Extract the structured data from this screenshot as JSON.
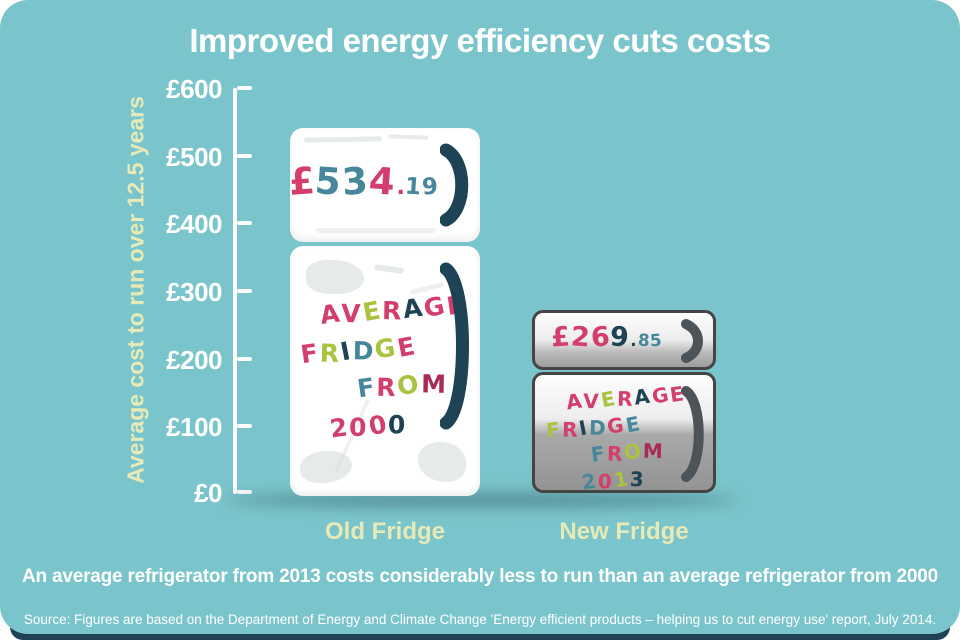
{
  "palette": {
    "pink": "#d23f6d",
    "teal": "#47869b",
    "lime": "#a9c23f",
    "navy": "#1d4355",
    "crimson": "#a82c52"
  },
  "colors": {
    "background": "#7ac5cb",
    "navy": "#1d4355",
    "pale_yellow": "#e7eab6",
    "white": "#ffffff",
    "silver_border": "#454545",
    "gray_handle": "#4d5356"
  },
  "title": "Improved energy efficiency cuts costs",
  "y_axis": {
    "label": "Average cost to run over 12.5 years",
    "ticks": [
      "£600",
      "£500",
      "£400",
      "£300",
      "£200",
      "£100",
      "£0"
    ]
  },
  "chart_data": {
    "type": "bar",
    "categories": [
      "Old Fridge",
      "New Fridge"
    ],
    "values": [
      534.19,
      269.85
    ],
    "value_labels": [
      "£534.19",
      "£269.85"
    ],
    "bar_annotations": [
      "AVERAGE FRIDGE FROM 2000",
      "AVERAGE FRIDGE FROM 2013"
    ],
    "title": "Improved energy efficiency cuts costs",
    "xlabel": "",
    "ylabel": "Average cost to run over 12.5 years",
    "ylim": [
      0,
      600
    ],
    "yticks": [
      0,
      100,
      200,
      300,
      400,
      500,
      600
    ],
    "unit": "£",
    "grid": false,
    "legend": false
  },
  "fridges": {
    "old": {
      "label": "Old Fridge",
      "price_letters": [
        {
          "ch": "£",
          "c": "pink"
        },
        {
          "ch": "5",
          "c": "teal"
        },
        {
          "ch": "3",
          "c": "teal"
        },
        {
          "ch": "4",
          "c": "pink"
        },
        {
          "ch": ".",
          "c": "pink",
          "small": true
        },
        {
          "ch": "1",
          "c": "teal",
          "small": true
        },
        {
          "ch": "9",
          "c": "teal",
          "small": true
        }
      ],
      "line0": [
        {
          "ch": "A",
          "c": "pink"
        },
        {
          "ch": "V",
          "c": "pink"
        },
        {
          "ch": "E",
          "c": "lime"
        },
        {
          "ch": "R",
          "c": "pink"
        },
        {
          "ch": "A",
          "c": "navy"
        },
        {
          "ch": "G",
          "c": "pink"
        },
        {
          "ch": "E",
          "c": "pink"
        }
      ],
      "line1": [
        {
          "ch": "F",
          "c": "pink"
        },
        {
          "ch": "R",
          "c": "lime"
        },
        {
          "ch": "I",
          "c": "navy"
        },
        {
          "ch": "D",
          "c": "teal"
        },
        {
          "ch": "G",
          "c": "lime"
        },
        {
          "ch": "E",
          "c": "pink"
        }
      ],
      "line2": [
        {
          "ch": "F",
          "c": "teal"
        },
        {
          "ch": "R",
          "c": "pink"
        },
        {
          "ch": "O",
          "c": "lime"
        },
        {
          "ch": "M",
          "c": "crimson"
        }
      ],
      "line3": [
        {
          "ch": "2",
          "c": "pink"
        },
        {
          "ch": "0",
          "c": "pink"
        },
        {
          "ch": "0",
          "c": "pink"
        },
        {
          "ch": "0",
          "c": "navy"
        }
      ]
    },
    "new": {
      "label": "New Fridge",
      "price_letters": [
        {
          "ch": "£",
          "c": "pink"
        },
        {
          "ch": "2",
          "c": "pink"
        },
        {
          "ch": "6",
          "c": "pink"
        },
        {
          "ch": "9",
          "c": "navy"
        },
        {
          "ch": ".",
          "c": "navy",
          "small": true
        },
        {
          "ch": "8",
          "c": "teal",
          "small": true
        },
        {
          "ch": "5",
          "c": "teal",
          "small": true
        }
      ],
      "line0": [
        {
          "ch": "A",
          "c": "pink"
        },
        {
          "ch": "V",
          "c": "pink"
        },
        {
          "ch": "E",
          "c": "lime"
        },
        {
          "ch": "R",
          "c": "pink"
        },
        {
          "ch": "A",
          "c": "navy"
        },
        {
          "ch": "G",
          "c": "pink"
        },
        {
          "ch": "E",
          "c": "pink"
        }
      ],
      "line1": [
        {
          "ch": "F",
          "c": "lime"
        },
        {
          "ch": "R",
          "c": "pink"
        },
        {
          "ch": "I",
          "c": "navy"
        },
        {
          "ch": "D",
          "c": "teal"
        },
        {
          "ch": "G",
          "c": "pink"
        },
        {
          "ch": "E",
          "c": "teal"
        }
      ],
      "line2": [
        {
          "ch": "F",
          "c": "teal"
        },
        {
          "ch": "R",
          "c": "pink"
        },
        {
          "ch": "O",
          "c": "lime"
        },
        {
          "ch": "M",
          "c": "crimson"
        }
      ],
      "line3": [
        {
          "ch": "2",
          "c": "teal"
        },
        {
          "ch": "0",
          "c": "pink"
        },
        {
          "ch": "1",
          "c": "lime"
        },
        {
          "ch": "3",
          "c": "navy"
        }
      ]
    }
  },
  "caption": "An average refrigerator from 2013 costs considerably less to run than an average refrigerator from 2000",
  "source": "Source: Figures are based on the Department of Energy and Climate Change 'Energy efficient products – helping us to cut energy use' report, July 2014."
}
